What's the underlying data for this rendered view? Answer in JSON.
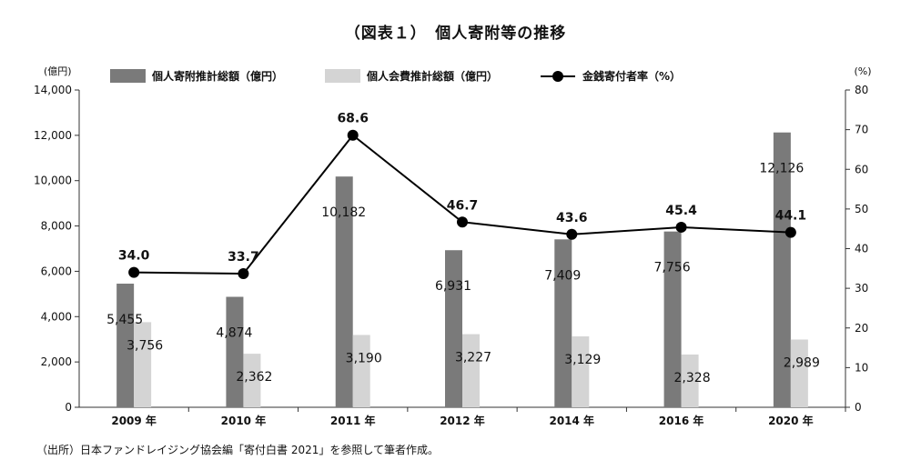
{
  "title": "（図表１）　個人寄附等の推移",
  "source": "（出所）日本ファンドレイジング協会編「寄付白書 2021」を参照して筆者作成。",
  "chart_data": {
    "type": "bar+line",
    "categories": [
      "2009 年",
      "2010 年",
      "2011 年",
      "2012 年",
      "2014 年",
      "2016 年",
      "2020 年"
    ],
    "series": [
      {
        "name": "個人寄附推計総額（億円）",
        "type": "bar",
        "axis": "left",
        "color": "#7a7a7a",
        "values": [
          5455,
          4874,
          10182,
          6931,
          7409,
          7756,
          12126
        ],
        "labels": [
          "5,455",
          "4,874",
          "10,182",
          "6,931",
          "7,409",
          "7,756",
          "12,126"
        ]
      },
      {
        "name": "個人会費推計総額（億円）",
        "type": "bar",
        "axis": "left",
        "color": "#d4d4d4",
        "values": [
          3756,
          2362,
          3190,
          3227,
          3129,
          2328,
          2989
        ],
        "labels": [
          "3,756",
          "2,362",
          "3,190",
          "3,227",
          "3,129",
          "2,328",
          "2,989"
        ]
      },
      {
        "name": "金銭寄付者率（%）",
        "type": "line",
        "axis": "right",
        "color": "#000000",
        "values": [
          34.0,
          33.7,
          68.6,
          46.7,
          43.6,
          45.4,
          44.1
        ],
        "labels": [
          "34.0",
          "33.7",
          "68.6",
          "46.7",
          "43.6",
          "45.4",
          "44.1"
        ]
      }
    ],
    "y_left": {
      "unit": "(億円)",
      "ylim": [
        0,
        14000
      ],
      "ticks": [
        "0",
        "2,000",
        "4,000",
        "6,000",
        "8,000",
        "10,000",
        "12,000",
        "14,000"
      ]
    },
    "y_right": {
      "unit": "(%)",
      "ylim": [
        0,
        80
      ],
      "ticks": [
        "0",
        "10",
        "20",
        "30",
        "40",
        "50",
        "60",
        "70",
        "80"
      ]
    },
    "grid": false,
    "legend_position": "top"
  }
}
